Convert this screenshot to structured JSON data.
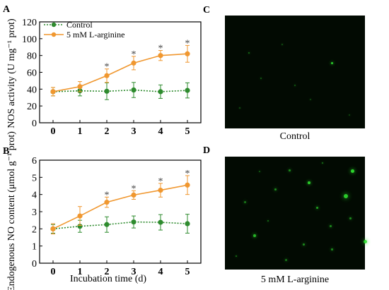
{
  "chart_data": [
    {
      "type": "line",
      "panel": "A",
      "ylabel": "NOS activity (U mg⁻¹ prot)",
      "xlabel": "",
      "x": [
        0,
        1,
        2,
        3,
        4,
        5
      ],
      "xticks": [
        "0",
        "1",
        "2",
        "3",
        "4",
        "5"
      ],
      "yticks": [
        "0",
        "20",
        "40",
        "60",
        "80",
        "100",
        "120"
      ],
      "ylim": [
        0,
        120
      ],
      "xlim": [
        -0.5,
        5.5
      ],
      "series": [
        {
          "name": "Control",
          "color": "#2e8b2e",
          "style": "dotted",
          "values": [
            37,
            38,
            37.5,
            39,
            37,
            38.5
          ],
          "err": [
            5,
            6,
            10,
            9,
            8,
            9
          ]
        },
        {
          "name": "5 mM L-arginine",
          "color": "#f0972f",
          "style": "solid",
          "values": [
            37,
            43,
            56,
            71,
            80,
            82
          ],
          "err": [
            5,
            6,
            8,
            8,
            6,
            10
          ],
          "significant": [
            false,
            false,
            true,
            true,
            true,
            true
          ]
        }
      ],
      "legend_placement": "top-left",
      "significance_marker": "*"
    },
    {
      "type": "line",
      "panel": "B",
      "ylabel": "Endogenous NO content (μmol g⁻¹ prot)",
      "xlabel": "Incubation time (d)",
      "x": [
        0,
        1,
        2,
        3,
        4,
        5
      ],
      "xticks": [
        "0",
        "1",
        "2",
        "3",
        "4",
        "5"
      ],
      "yticks": [
        "0",
        "1",
        "2",
        "3",
        "4",
        "5",
        "6"
      ],
      "ylim": [
        0,
        6
      ],
      "xlim": [
        -0.5,
        5.5
      ],
      "series": [
        {
          "name": "Control",
          "color": "#2e8b2e",
          "style": "dotted",
          "values": [
            2.0,
            2.15,
            2.25,
            2.4,
            2.38,
            2.3
          ],
          "err": [
            0.25,
            0.35,
            0.45,
            0.35,
            0.45,
            0.55
          ]
        },
        {
          "name": "5 mM L-arginine",
          "color": "#f0972f",
          "style": "solid",
          "values": [
            2.0,
            2.75,
            3.55,
            3.97,
            4.25,
            4.55
          ],
          "err": [
            0.3,
            0.55,
            0.3,
            0.25,
            0.4,
            0.55
          ],
          "significant": [
            false,
            false,
            true,
            true,
            true,
            true
          ]
        }
      ],
      "significance_marker": "*"
    }
  ],
  "legend": {
    "control_label": "Control",
    "treatment_label": "5 mM L-arginine"
  },
  "panels": {
    "a": "A",
    "b": "B",
    "c": "C",
    "d": "D"
  },
  "images": {
    "c_caption": "Control",
    "d_caption": "5 mM L-arginine",
    "colors": {
      "background": "#020a02",
      "fluorescence": "#2fe02f"
    }
  }
}
